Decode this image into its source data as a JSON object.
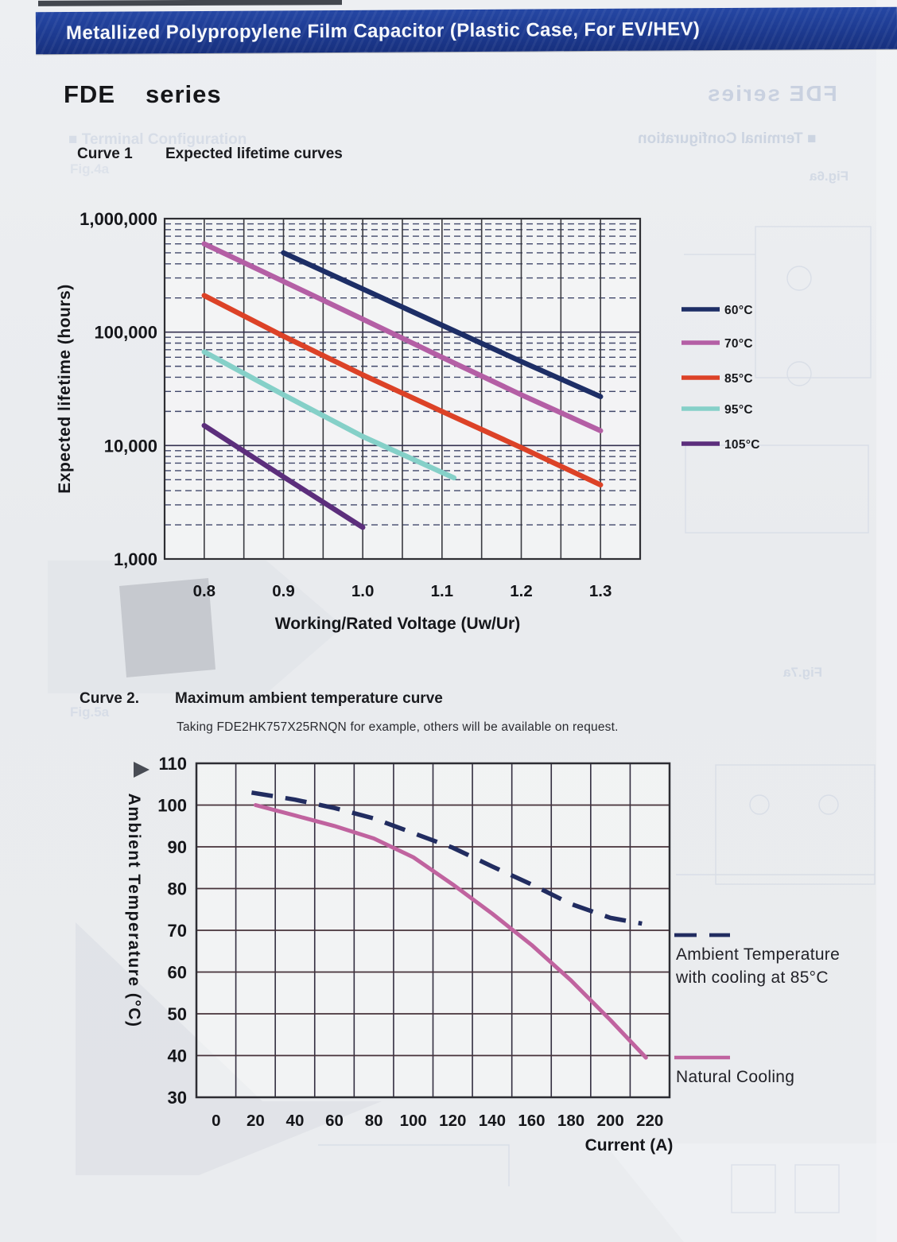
{
  "header": {
    "banner_title": "Metallized Polypropylene Film Capacitor (Plastic Case, For EV/HEV)",
    "series_code": "FDE",
    "series_word": "series"
  },
  "curve1": {
    "label": "Curve 1",
    "title": "Expected lifetime curves"
  },
  "curve2": {
    "label": "Curve 2.",
    "title": "Maximum ambient temperature curve",
    "note": "Taking  FDE2HK757X25RNQN for example, others will be available on request."
  },
  "ghosts": {
    "fde_series_mirrored": "FDE  series",
    "terminal_configuration": "■ Terminal Configuration",
    "fig4": "Fig.4a",
    "fig5": "Fig.5a",
    "fig6": "Fig.6a",
    "fig7": "Fig.7a"
  },
  "colors": {
    "banner_blue": "#1d3a90",
    "paper": "#e9ebee",
    "series_60c": "#1d2e66",
    "series_70c": "#b45fa5",
    "series_85c": "#dc4227",
    "series_95c": "#85d0c8",
    "series_105c": "#5c2e7c",
    "cooling_dashed_navy": "#212c60",
    "natural_cooling_pink": "#c0639f"
  },
  "chart_data": [
    {
      "type": "line",
      "title": "Expected lifetime curves",
      "xlabel": "Working/Rated Voltage (Uw/Ur)",
      "ylabel": "Expected lifetime (hours)",
      "yscale": "log",
      "xlim": [
        0.75,
        1.35
      ],
      "ylim": [
        1000,
        1000000
      ],
      "x_grid_step": 0.05,
      "x_ticks": [
        0.8,
        0.9,
        1.0,
        1.1,
        1.2,
        1.3
      ],
      "x_tick_labels": [
        "0.8",
        "0.9",
        "1.0",
        "1.1",
        "1.2",
        "1.3"
      ],
      "y_ticks": [
        1000,
        10000,
        100000,
        1000000
      ],
      "y_tick_labels": [
        "1,000",
        "10,000",
        "100,000",
        "1,000,000"
      ],
      "grid": "vertical solid every 0.05; horizontal solid per decade; dashed log minor lines",
      "legend_position": "right",
      "series": [
        {
          "name": "60°C",
          "color": "#1d2e66",
          "width": 6.5,
          "points": [
            [
              0.9,
              500000
            ],
            [
              1.0,
              240000
            ],
            [
              1.1,
              115000
            ],
            [
              1.2,
              55000
            ],
            [
              1.3,
              27000
            ]
          ]
        },
        {
          "name": "70°C",
          "color": "#b45fa5",
          "width": 6.5,
          "points": [
            [
              0.8,
              600000
            ],
            [
              0.9,
              280000
            ],
            [
              1.0,
              130000
            ],
            [
              1.1,
              60000
            ],
            [
              1.2,
              28000
            ],
            [
              1.3,
              13500
            ]
          ]
        },
        {
          "name": "85°C",
          "color": "#dc4227",
          "width": 6.5,
          "points": [
            [
              0.8,
              210000
            ],
            [
              0.9,
              92000
            ],
            [
              1.0,
              42000
            ],
            [
              1.1,
              20000
            ],
            [
              1.2,
              9600
            ],
            [
              1.3,
              4500
            ]
          ]
        },
        {
          "name": "95°C",
          "color": "#85d0c8",
          "width": 6.5,
          "points": [
            [
              0.8,
              67000
            ],
            [
              0.9,
              28000
            ],
            [
              1.0,
              12000
            ],
            [
              1.115,
              5200
            ]
          ]
        },
        {
          "name": "105°C",
          "color": "#5c2e7c",
          "width": 6.5,
          "points": [
            [
              0.8,
              15000
            ],
            [
              0.9,
              5300
            ],
            [
              1.0,
              1900
            ]
          ]
        }
      ]
    },
    {
      "type": "line",
      "title": "Maximum ambient temperature curve",
      "note": "Taking FDE2HK757X25RNQN for example, others will be available on request.",
      "xlabel": "Current (A)",
      "ylabel": "Ambient Temperature (°C)",
      "yscale": "linear",
      "xlim": [
        -10,
        230
      ],
      "ylim": [
        30,
        110
      ],
      "x_grid_step": 20,
      "y_grid_step": 10,
      "x_ticks": [
        0,
        20,
        40,
        60,
        80,
        100,
        120,
        140,
        160,
        180,
        200,
        220
      ],
      "x_tick_labels": [
        "0",
        "20",
        "40",
        "60",
        "80",
        "100",
        "120",
        "140",
        "160",
        "180",
        "200",
        "220"
      ],
      "y_ticks": [
        30,
        40,
        50,
        60,
        70,
        80,
        90,
        100,
        110
      ],
      "y_tick_labels": [
        "30",
        "40",
        "50",
        "60",
        "70",
        "80",
        "90",
        "100",
        "110"
      ],
      "grid": "solid grid both directions",
      "legend_position": "right",
      "series": [
        {
          "name": "Ambient Temperature with cooling at 85°C",
          "legend_lines": [
            "Ambient Temperature",
            "with cooling at 85°C"
          ],
          "color": "#212c60",
          "width": 5.5,
          "dash": [
            27,
            16
          ],
          "points": [
            [
              18,
              103
            ],
            [
              40,
              101.3
            ],
            [
              60,
              99.3
            ],
            [
              80,
              96.8
            ],
            [
              100,
              93.3
            ],
            [
              120,
              89.8
            ],
            [
              140,
              85.3
            ],
            [
              160,
              81
            ],
            [
              180,
              76.3
            ],
            [
              200,
              73
            ],
            [
              216,
              71.6
            ]
          ]
        },
        {
          "name": "Natural Cooling",
          "legend_lines": [
            "Natural Cooling"
          ],
          "color": "#c0639f",
          "width": 5,
          "points": [
            [
              20,
              100
            ],
            [
              40,
              97.5
            ],
            [
              60,
              95
            ],
            [
              80,
              92
            ],
            [
              100,
              87.5
            ],
            [
              120,
              81
            ],
            [
              140,
              74
            ],
            [
              160,
              66.5
            ],
            [
              180,
              58
            ],
            [
              200,
              48.5
            ],
            [
              218,
              39.5
            ]
          ]
        }
      ]
    }
  ]
}
